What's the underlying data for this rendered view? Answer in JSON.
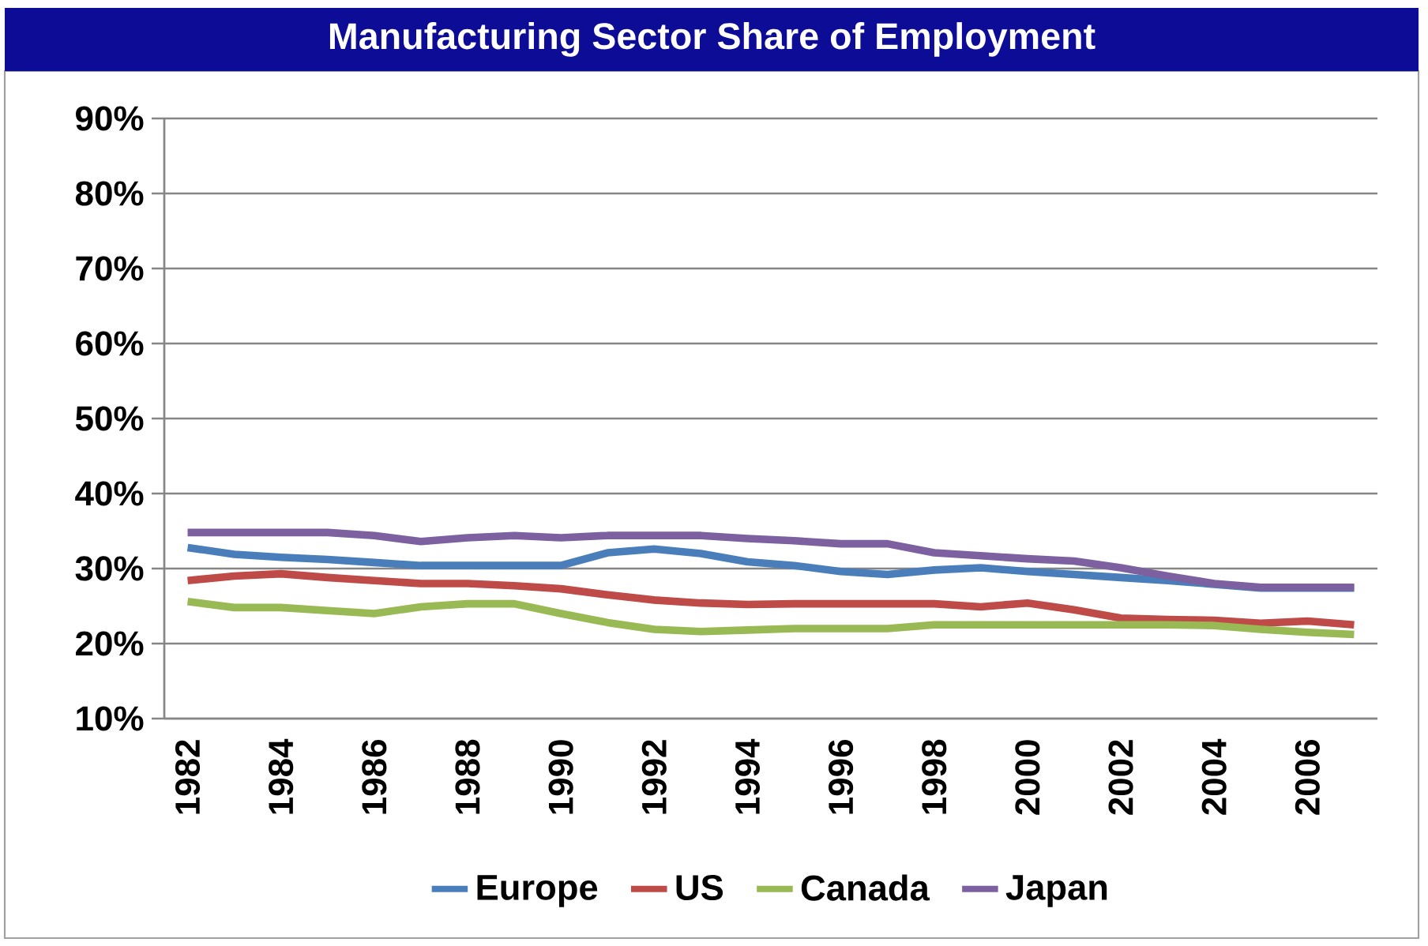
{
  "chart_data": {
    "type": "line",
    "title": "Manufacturing Sector Share of Employment",
    "categories": [
      "1982",
      null,
      "1984",
      null,
      "1986",
      null,
      "1988",
      null,
      "1990",
      null,
      "1992",
      null,
      "1994",
      null,
      "1996",
      null,
      "1998",
      null,
      "2000",
      null,
      "2002",
      null,
      "2004",
      null,
      "2006",
      null
    ],
    "series": [
      {
        "name": "Europe",
        "color": "#4a7ebb",
        "values": [
          32.8,
          31.9,
          31.5,
          31.2,
          30.8,
          30.4,
          30.4,
          30.4,
          30.4,
          32.1,
          32.6,
          32.0,
          30.9,
          30.4,
          29.6,
          29.2,
          29.8,
          30.1,
          29.6,
          29.2,
          28.8,
          28.4,
          27.9,
          27.4,
          27.4,
          27.4
        ]
      },
      {
        "name": "US",
        "color": "#be4b48",
        "values": [
          28.4,
          29.0,
          29.3,
          28.8,
          28.4,
          28.0,
          28.0,
          27.7,
          27.3,
          26.5,
          25.8,
          25.4,
          25.2,
          25.3,
          25.3,
          25.3,
          25.3,
          24.9,
          25.4,
          24.5,
          23.4,
          23.2,
          23.1,
          22.7,
          23.0,
          22.5
        ]
      },
      {
        "name": "Canada",
        "color": "#98b954",
        "values": [
          25.6,
          24.8,
          24.8,
          24.4,
          24.0,
          24.9,
          25.3,
          25.3,
          24.0,
          22.8,
          21.9,
          21.6,
          21.8,
          22.0,
          22.0,
          22.0,
          22.5,
          22.5,
          22.5,
          22.5,
          22.5,
          22.5,
          22.4,
          21.9,
          21.5,
          21.2
        ]
      },
      {
        "name": "Japan",
        "color": "#7d60a0",
        "values": [
          34.8,
          34.8,
          34.8,
          34.8,
          34.4,
          33.6,
          34.1,
          34.4,
          34.1,
          34.4,
          34.4,
          34.4,
          34.0,
          33.7,
          33.3,
          33.3,
          32.1,
          31.7,
          31.3,
          31.0,
          30.1,
          29.0,
          28.0,
          27.5,
          27.5,
          27.5
        ]
      }
    ],
    "ylim": [
      10,
      90
    ],
    "yticks": [
      {
        "value": 10,
        "label": "10%"
      },
      {
        "value": 20,
        "label": "20%"
      },
      {
        "value": 30,
        "label": "30%"
      },
      {
        "value": 40,
        "label": "40%"
      },
      {
        "value": 50,
        "label": "50%"
      },
      {
        "value": 60,
        "label": "60%"
      },
      {
        "value": 70,
        "label": "70%"
      },
      {
        "value": 80,
        "label": "80%"
      },
      {
        "value": 90,
        "label": "90%"
      }
    ],
    "grid": "y",
    "legend": "bottom"
  }
}
